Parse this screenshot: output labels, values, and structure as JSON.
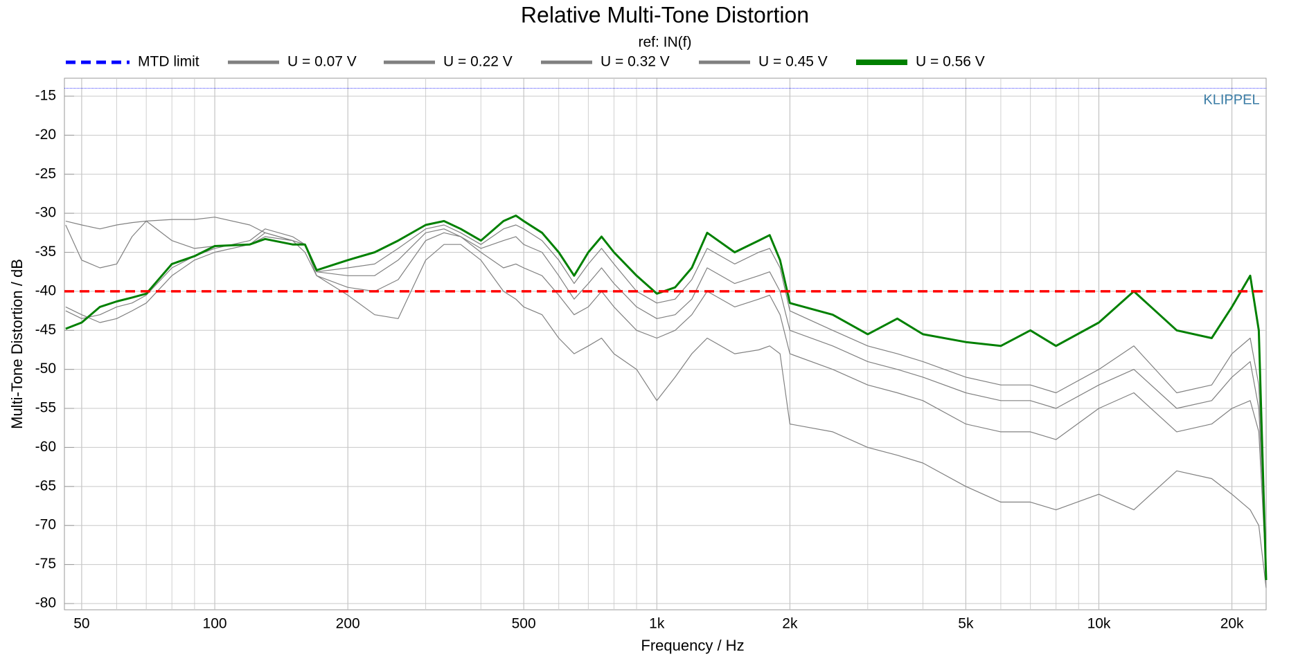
{
  "chart_data": {
    "type": "line",
    "title": "Relative Multi-Tone Distortion",
    "subtitle": "ref: IN(f)",
    "x_label": "Frequency / Hz",
    "y_label": "Multi-Tone Distortion / dB",
    "annotation": "KLIPPEL",
    "log_x": true,
    "grid": true,
    "xlim": [
      45.7,
      23900
    ],
    "ylim": [
      -80.8,
      -12.7
    ],
    "xticks": [
      50,
      100,
      200,
      500,
      {
        "value": 1000,
        "label": "1k"
      },
      {
        "value": 2000,
        "label": "2k"
      },
      {
        "value": 5000,
        "label": "5k"
      },
      {
        "value": 10000,
        "label": "10k"
      },
      {
        "value": 20000,
        "label": "20k"
      }
    ],
    "xminorticks": [
      60,
      70,
      80,
      90,
      300,
      400,
      600,
      700,
      800,
      900,
      3000,
      4000,
      6000,
      7000,
      8000,
      9000
    ],
    "yticks": [
      -15,
      -20,
      -25,
      -30,
      -35,
      -40,
      -45,
      -50,
      -55,
      -60,
      -65,
      -70,
      -75,
      -80
    ],
    "reference_line": {
      "value": -40,
      "color": "#ff0000"
    },
    "limit": {
      "name": "MTD limit",
      "color": "#0000ff",
      "value": -14
    },
    "x": [
      46,
      50,
      55,
      60,
      65,
      70,
      80,
      90,
      100,
      120,
      130,
      150,
      160,
      170,
      200,
      230,
      260,
      300,
      330,
      360,
      400,
      450,
      480,
      500,
      550,
      600,
      650,
      700,
      750,
      800,
      900,
      1000,
      1100,
      1200,
      1300,
      1500,
      1700,
      1800,
      1900,
      2000,
      2500,
      3000,
      3500,
      4000,
      5000,
      6000,
      7000,
      8000,
      10000,
      12000,
      15000,
      18000,
      20000,
      22000,
      23000,
      23900
    ],
    "series": [
      {
        "name": "U = 0.07 V",
        "color": "#808080",
        "values": [
          -31,
          -31.5,
          -32,
          -31.5,
          -31.2,
          -31,
          -30.8,
          -30.8,
          -30.5,
          -31.5,
          -32.5,
          -33.5,
          -35,
          -38,
          -40.5,
          -43,
          -43.5,
          -36,
          -34,
          -34,
          -36,
          -40,
          -41,
          -42,
          -43,
          -46,
          -48,
          -47,
          -46,
          -48,
          -50,
          -54,
          -51,
          -48,
          -46,
          -48,
          -47.5,
          -47,
          -48,
          -57,
          -58,
          -60,
          -61,
          -62,
          -65,
          -67,
          -67,
          -68,
          -66,
          -68,
          -63,
          -64,
          -66,
          -68,
          -70,
          -78
        ]
      },
      {
        "name": "U = 0.22 V",
        "color": "#808080",
        "values": [
          -31.5,
          -36,
          -37,
          -36.5,
          -33,
          -31,
          -33.5,
          -34.5,
          -34.2,
          -34,
          -33,
          -33.5,
          -34,
          -38,
          -39.5,
          -40,
          -38.5,
          -33.5,
          -32.5,
          -33,
          -35,
          -37,
          -36.5,
          -37,
          -38,
          -40.5,
          -43,
          -42,
          -40,
          -42,
          -45,
          -46,
          -45,
          -43,
          -40,
          -42,
          -41,
          -40.5,
          -43,
          -48,
          -50,
          -52,
          -53,
          -54,
          -57,
          -58,
          -58,
          -59,
          -55,
          -53,
          -58,
          -57,
          -55,
          -54,
          -58,
          -76
        ]
      },
      {
        "name": "U = 0.32 V",
        "color": "#808080",
        "values": [
          -42,
          -43,
          -44,
          -43.5,
          -42.5,
          -41.5,
          -38,
          -36,
          -35,
          -34,
          -32.5,
          -33.5,
          -34,
          -37.5,
          -38,
          -38,
          -36,
          -32.5,
          -32,
          -33,
          -34.5,
          -33.5,
          -33,
          -34,
          -35,
          -38,
          -41,
          -39,
          -37,
          -39,
          -42,
          -43.5,
          -43,
          -41,
          -37,
          -39,
          -38,
          -37.5,
          -40,
          -45,
          -47,
          -49,
          -50,
          -51,
          -53,
          -54,
          -54,
          -55,
          -52,
          -50,
          -55,
          -54,
          -51,
          -49,
          -55,
          -75
        ]
      },
      {
        "name": "U = 0.45 V",
        "color": "#808080",
        "values": [
          -42.5,
          -43.5,
          -43,
          -42,
          -41.5,
          -40.5,
          -37,
          -35.5,
          -34.5,
          -33.5,
          -32,
          -33,
          -34,
          -37.5,
          -37,
          -36.5,
          -34.5,
          -32,
          -31.5,
          -32.5,
          -34,
          -32,
          -31.5,
          -32,
          -33.5,
          -36,
          -39,
          -36.5,
          -34.5,
          -36.5,
          -40,
          -41.5,
          -41,
          -38.5,
          -34.5,
          -36.5,
          -35,
          -34.5,
          -37,
          -42.5,
          -45,
          -47,
          -48,
          -49,
          -51,
          -52,
          -52,
          -53,
          -50,
          -47,
          -53,
          -52,
          -48,
          -46,
          -52,
          -75
        ]
      },
      {
        "name": "U = 0.56 V",
        "color": "#008000",
        "values": [
          -44.8,
          -44,
          -42,
          -41.3,
          -40.8,
          -40.3,
          -36.5,
          -35.5,
          -34.2,
          -34,
          -33.3,
          -34,
          -34,
          -37.3,
          -36,
          -35,
          -33.5,
          -31.5,
          -31,
          -32,
          -33.5,
          -31,
          -30.3,
          -31,
          -32.5,
          -35,
          -38,
          -35,
          -33,
          -35,
          -38,
          -40.3,
          -39.5,
          -37,
          -32.5,
          -35,
          -33.5,
          -32.8,
          -36,
          -41.5,
          -43,
          -45.5,
          -43.5,
          -45.5,
          -46.5,
          -47,
          -45,
          -47,
          -44,
          -40,
          -45,
          -46,
          -42,
          -38,
          -45,
          -77
        ]
      }
    ]
  }
}
